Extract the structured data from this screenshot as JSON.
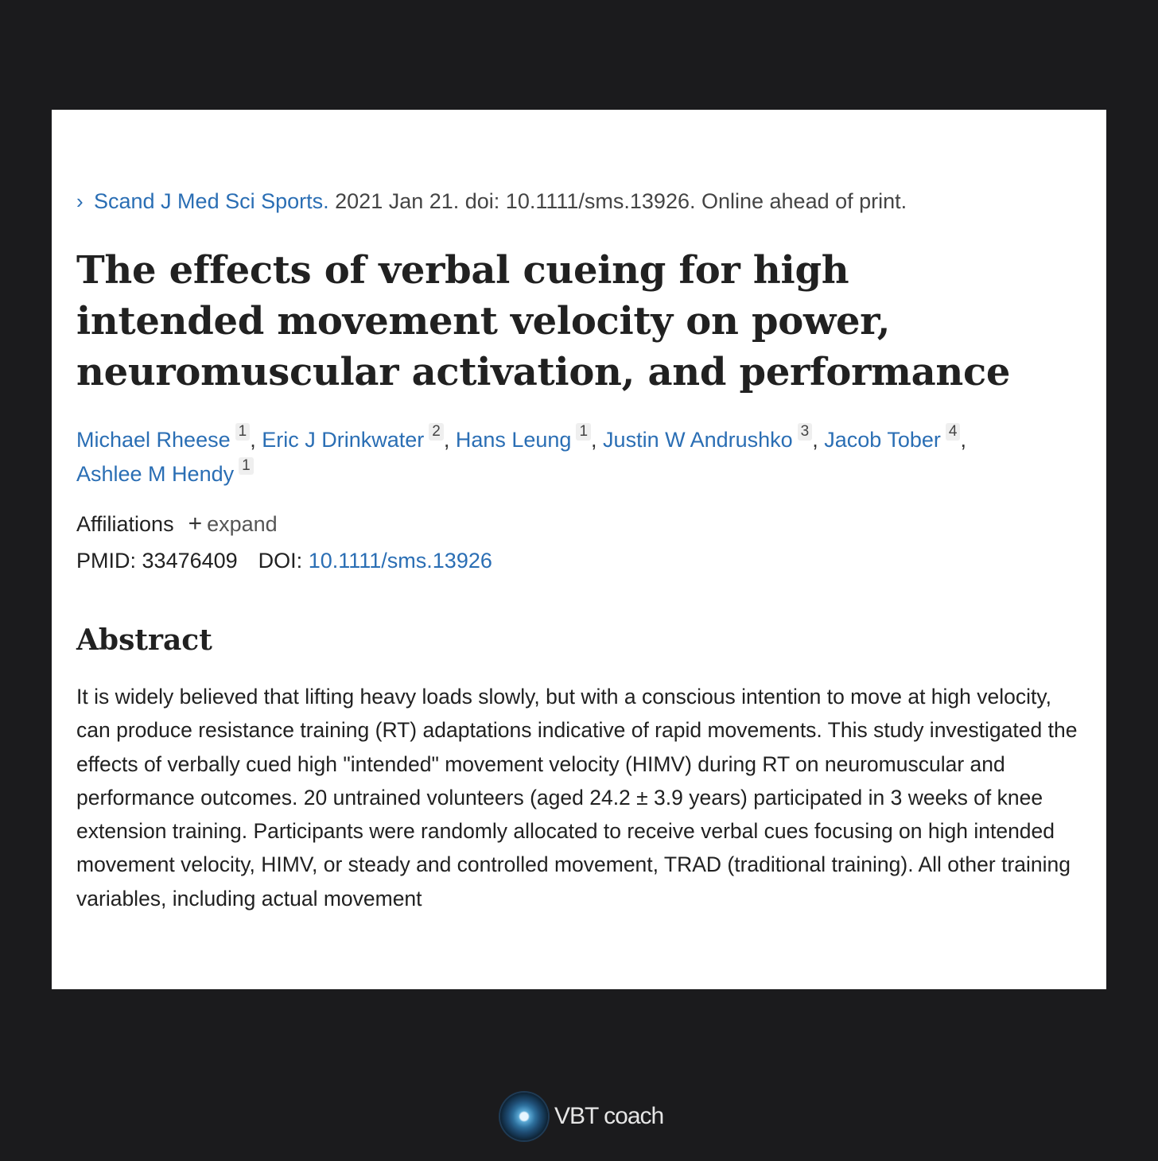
{
  "citation": {
    "journal": "Scand J Med Sci Sports.",
    "details": " 2021 Jan 21. doi: 10.1111/sms.13926. Online ahead of print."
  },
  "title": "The effects of verbal cueing for high intended movement velocity on power, neuromuscular activation, and performance",
  "authors": [
    {
      "name": "Michael Rheese",
      "aff": "1"
    },
    {
      "name": "Eric J Drinkwater",
      "aff": "2"
    },
    {
      "name": "Hans Leung",
      "aff": "1"
    },
    {
      "name": "Justin W Andrushko",
      "aff": "3"
    },
    {
      "name": "Jacob Tober",
      "aff": "4"
    },
    {
      "name": "Ashlee M Hendy",
      "aff": "1"
    }
  ],
  "affiliations": {
    "label": "Affiliations",
    "expand": "expand"
  },
  "ids": {
    "pmid_label": "PMID:",
    "pmid": "33476409",
    "doi_label": "DOI:",
    "doi": "10.1111/sms.13926"
  },
  "abstract": {
    "heading": "Abstract",
    "text": "It is widely believed that lifting heavy loads slowly, but with a conscious intention to move at high velocity, can produce resistance training (RT) adaptations indicative of rapid movements. This study investigated the effects of verbally cued high \"intended\" movement velocity (HIMV) during RT on neuromuscular and performance outcomes. 20 untrained volunteers (aged 24.2 ± 3.9 years) participated in 3 weeks of knee extension training. Participants were randomly allocated to receive verbal cues focusing on high intended movement velocity, HIMV, or steady and controlled movement, TRAD (traditional training). All other training variables, including actual movement"
  },
  "brand": {
    "name": "VBT coach"
  }
}
